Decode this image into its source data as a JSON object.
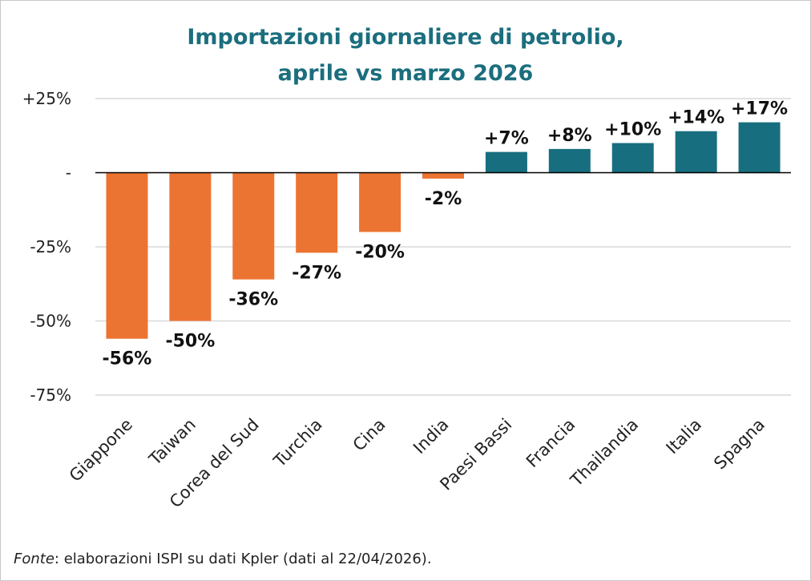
{
  "chart_data": {
    "type": "bar",
    "title_lines": [
      "Importazioni giornaliere di petrolio,",
      "aprile vs marzo 2026"
    ],
    "categories": [
      "Giappone",
      "Taiwan",
      "Corea del Sud",
      "Turchia",
      "Cina",
      "India",
      "Paesi Bassi",
      "Francia",
      "Thailandia",
      "Italia",
      "Spagna"
    ],
    "values": [
      -56,
      -50,
      -36,
      -27,
      -20,
      -2,
      7,
      8,
      10,
      14,
      17
    ],
    "data_labels": [
      "-56%",
      "-50%",
      "-36%",
      "-27%",
      "-20%",
      "-2%",
      "+7%",
      "+8%",
      "+10%",
      "+14%",
      "+17%"
    ],
    "ylim": [
      -75,
      25
    ],
    "yticks": [
      25,
      0,
      -25,
      -50,
      -75
    ],
    "ytick_labels": [
      "+25%",
      "-",
      "-25%",
      "-50%",
      "-75%"
    ],
    "grid": true,
    "colors": {
      "negative": "#ec7432",
      "positive": "#176e7e",
      "title": "#1b6e7e"
    }
  },
  "footer": {
    "source_label": "Fonte",
    "source_text": ": elaborazioni ISPI su dati Kpler (dati al 22/04/2026)."
  }
}
